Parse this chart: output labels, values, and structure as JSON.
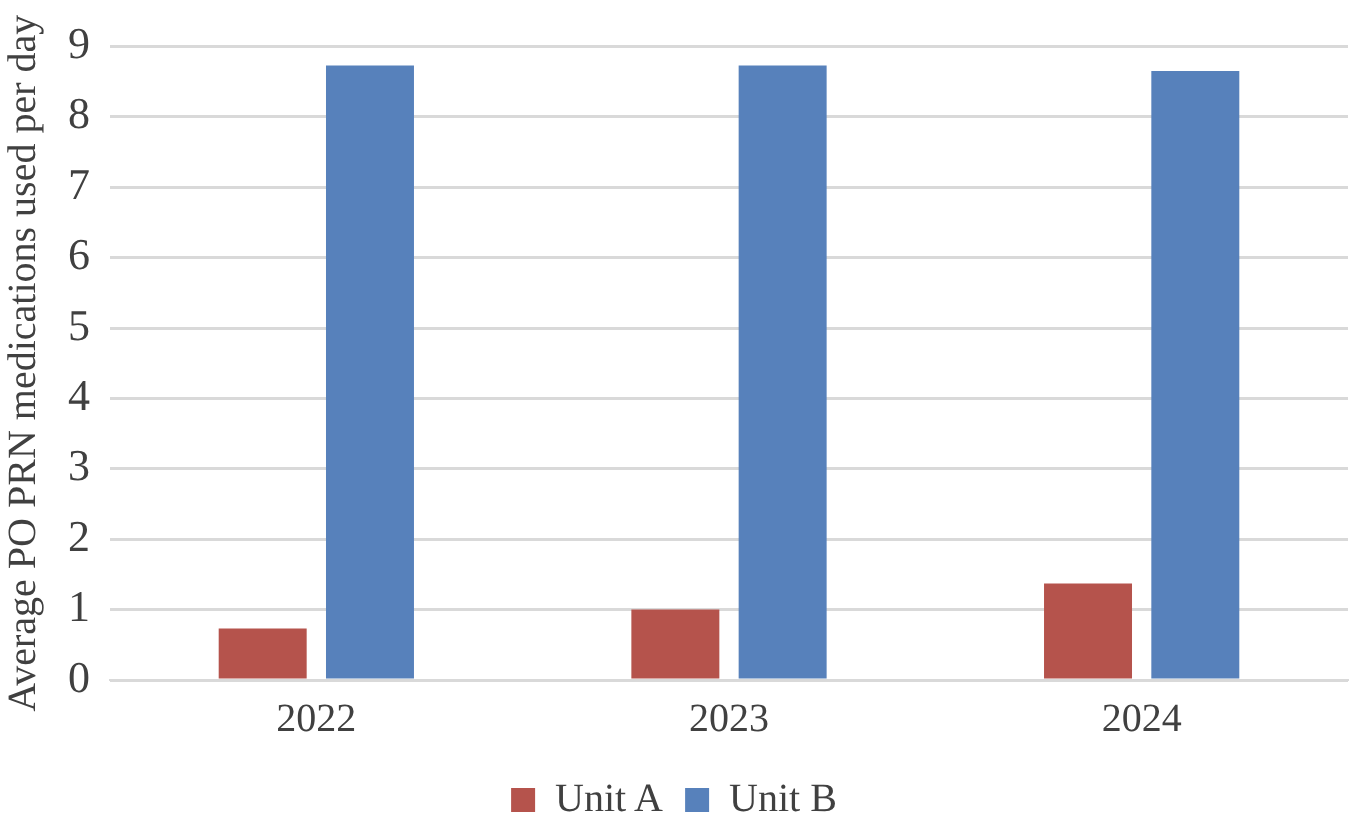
{
  "chart_data": {
    "type": "bar",
    "ylabel": "Average PO PRN medications used per day",
    "categories": [
      "2022",
      "2023",
      "2024"
    ],
    "series": [
      {
        "name": "Unit A",
        "color": "#b5534c",
        "values": [
          0.73,
          1.0,
          1.37
        ]
      },
      {
        "name": "Unit B",
        "color": "#5781bb",
        "values": [
          8.73,
          8.73,
          8.65
        ]
      }
    ],
    "ylim": [
      0,
      9
    ],
    "yticks": [
      0,
      1,
      2,
      3,
      4,
      5,
      6,
      7,
      8,
      9
    ],
    "grid": "y",
    "legend": "bottom"
  }
}
